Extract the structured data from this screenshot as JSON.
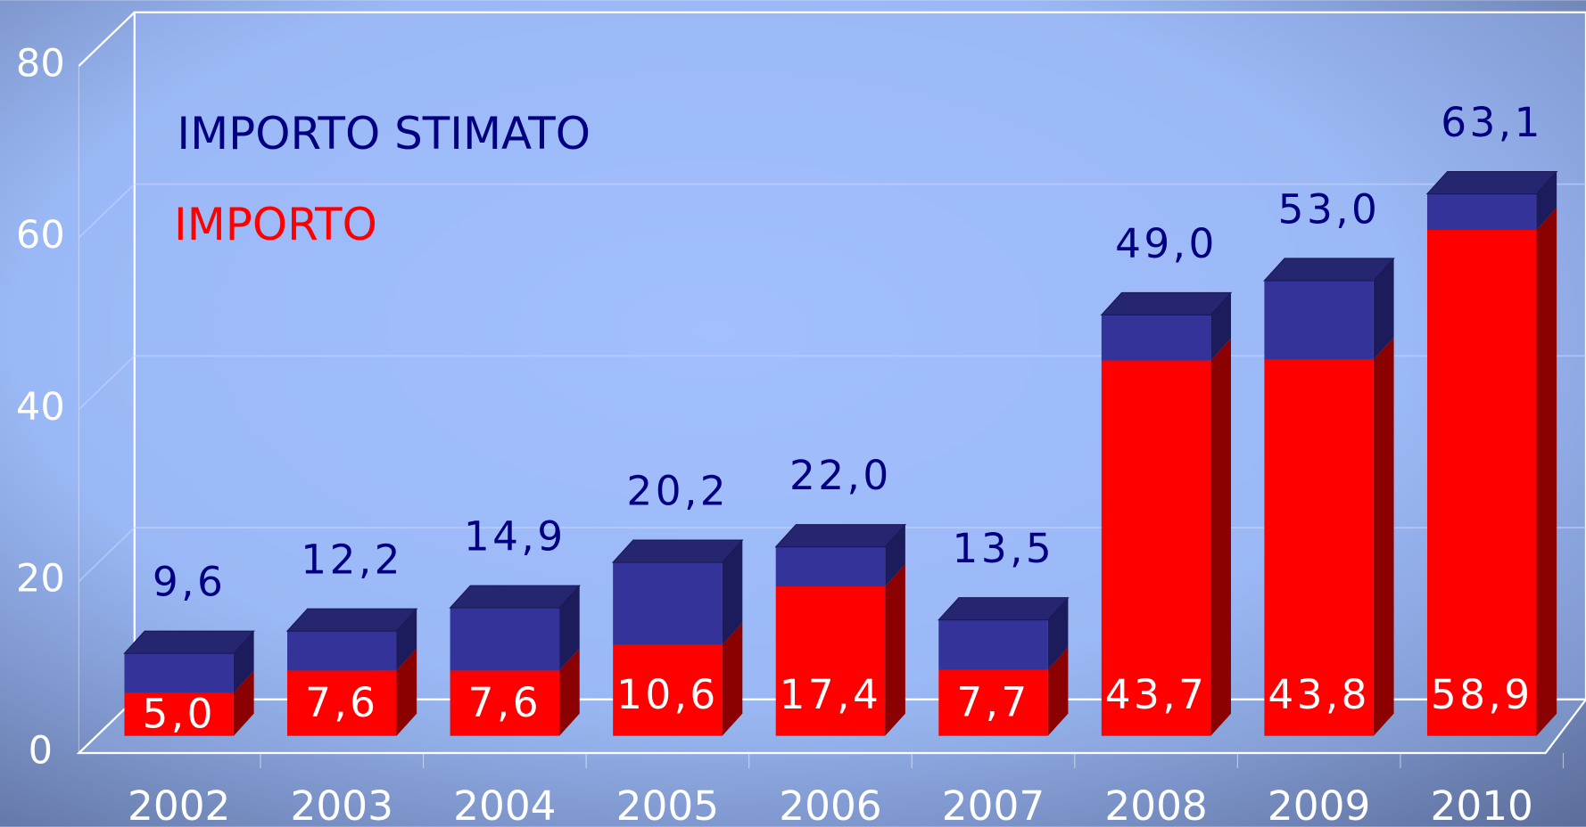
{
  "chart_data": {
    "type": "bar3d-stacked",
    "categories": [
      "2002",
      "2003",
      "2004",
      "2005",
      "2006",
      "2007",
      "2008",
      "2009",
      "2010"
    ],
    "series": [
      {
        "name": "IMPORTO",
        "color": "#ff0000",
        "values": [
          5.0,
          7.6,
          7.6,
          10.6,
          17.4,
          7.7,
          43.7,
          43.8,
          58.9
        ],
        "value_labels": [
          "5,0",
          "7,6",
          "7,6",
          "10,6",
          "17,4",
          "7,7",
          "43,7",
          "43,8",
          "58,9"
        ]
      },
      {
        "name": "IMPORTO STIMATO",
        "color": "#333399",
        "values": [
          4.6,
          4.6,
          7.3,
          9.6,
          4.6,
          5.8,
          5.3,
          9.2,
          4.2
        ]
      }
    ],
    "total_labels": [
      "9,6",
      "12,2",
      "14,9",
      "20,2",
      "22,0",
      "13,5",
      "49,0",
      "53,0",
      "63,1"
    ],
    "ylim": [
      0,
      80
    ],
    "yticks": [
      0,
      20,
      40,
      60,
      80
    ],
    "grid": true
  }
}
